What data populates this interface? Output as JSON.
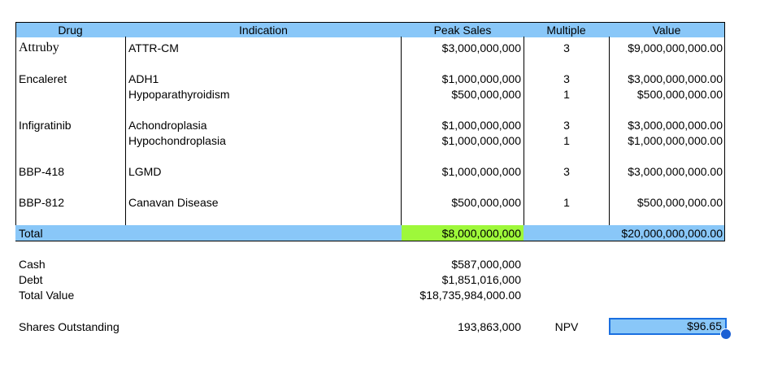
{
  "header": {
    "drug": "Drug",
    "indication": "Indication",
    "peak_sales": "Peak Sales",
    "multiple": "Multiple",
    "value": "Value"
  },
  "rows": [
    {
      "drug": "Attruby",
      "indications": [
        "ATTR-CM"
      ],
      "peak_sales": [
        "$3,000,000,000"
      ],
      "multiples": [
        "3"
      ],
      "values": [
        "$9,000,000,000.00"
      ]
    },
    {
      "drug": "Encaleret",
      "indications": [
        "ADH1",
        "Hypoparathyroidism"
      ],
      "peak_sales": [
        "$1,000,000,000",
        "$500,000,000"
      ],
      "multiples": [
        "3",
        "1"
      ],
      "values": [
        "$3,000,000,000.00",
        "$500,000,000.00"
      ]
    },
    {
      "drug": "Infigratinib",
      "indications": [
        "Achondroplasia",
        "Hypochondroplasia"
      ],
      "peak_sales": [
        "$1,000,000,000",
        "$1,000,000,000"
      ],
      "multiples": [
        "3",
        "1"
      ],
      "values": [
        "$3,000,000,000.00",
        "$1,000,000,000.00"
      ]
    },
    {
      "drug": "BBP-418",
      "indications": [
        "LGMD"
      ],
      "peak_sales": [
        "$1,000,000,000"
      ],
      "multiples": [
        "3"
      ],
      "values": [
        "$3,000,000,000.00"
      ]
    },
    {
      "drug": "BBP-812",
      "indications": [
        "Canavan Disease"
      ],
      "peak_sales": [
        "$500,000,000"
      ],
      "multiples": [
        "1"
      ],
      "values": [
        "$500,000,000.00"
      ]
    }
  ],
  "total": {
    "label": "Total",
    "peak_sales": "$8,000,000,000",
    "value": "$20,000,000,000.00"
  },
  "summary": {
    "cash_label": "Cash",
    "cash_value": "$587,000,000",
    "debt_label": "Debt",
    "debt_value": "$1,851,016,000",
    "total_value_label": "Total Value",
    "total_value": "$18,735,984,000.00",
    "shares_label": "Shares Outstanding",
    "shares_value": "193,863,000",
    "npv_label": "NPV",
    "npv_value": "$96.65"
  },
  "colors": {
    "header_bg": "#89c7f8",
    "highlight_green": "#9ef83a",
    "selection_blue": "#1a6fe0"
  }
}
